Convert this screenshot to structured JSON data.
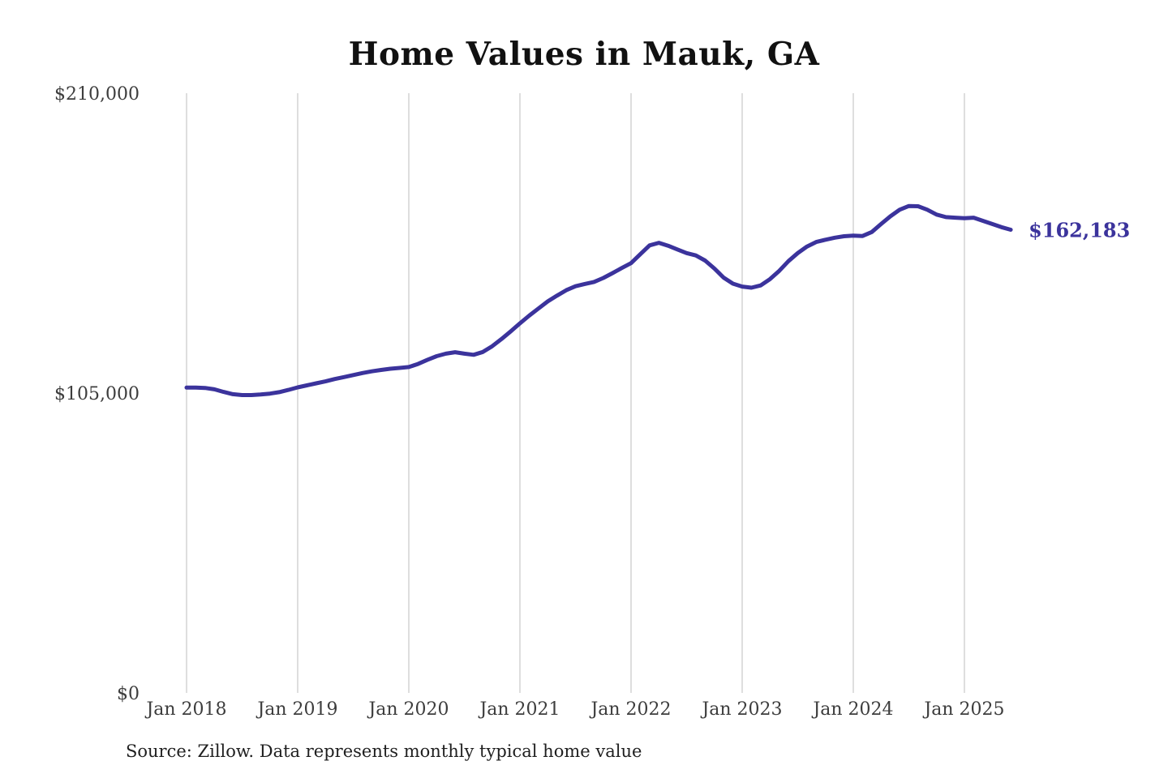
{
  "chart_data": {
    "type": "line",
    "title": "Home Values in Mauk, GA",
    "source_note": "Source: Zillow. Data represents monthly typical home value",
    "end_label": "$162,183",
    "line_color": "#3b339c",
    "grid": "vertical-only",
    "legend": "none",
    "ylim": [
      0,
      210000
    ],
    "y_ticks": [
      {
        "label": "$0",
        "value": 0
      },
      {
        "label": "$105,000",
        "value": 105000
      },
      {
        "label": "$210,000",
        "value": 210000
      }
    ],
    "x_ticks": [
      {
        "label": "Jan 2018",
        "month_index": 0
      },
      {
        "label": "Jan 2019",
        "month_index": 12
      },
      {
        "label": "Jan 2020",
        "month_index": 24
      },
      {
        "label": "Jan 2021",
        "month_index": 36
      },
      {
        "label": "Jan 2022",
        "month_index": 48
      },
      {
        "label": "Jan 2023",
        "month_index": 60
      },
      {
        "label": "Jan 2024",
        "month_index": 72
      },
      {
        "label": "Jan 2025",
        "month_index": 84
      }
    ],
    "x": [
      "2018-01",
      "2018-02",
      "2018-03",
      "2018-04",
      "2018-05",
      "2018-06",
      "2018-07",
      "2018-08",
      "2018-09",
      "2018-10",
      "2018-11",
      "2018-12",
      "2019-01",
      "2019-02",
      "2019-03",
      "2019-04",
      "2019-05",
      "2019-06",
      "2019-07",
      "2019-08",
      "2019-09",
      "2019-10",
      "2019-11",
      "2019-12",
      "2020-01",
      "2020-02",
      "2020-03",
      "2020-04",
      "2020-05",
      "2020-06",
      "2020-07",
      "2020-08",
      "2020-09",
      "2020-10",
      "2020-11",
      "2020-12",
      "2021-01",
      "2021-02",
      "2021-03",
      "2021-04",
      "2021-05",
      "2021-06",
      "2021-07",
      "2021-08",
      "2021-09",
      "2021-10",
      "2021-11",
      "2021-12",
      "2022-01",
      "2022-02",
      "2022-03",
      "2022-04",
      "2022-05",
      "2022-06",
      "2022-07",
      "2022-08",
      "2022-09",
      "2022-10",
      "2022-11",
      "2022-12",
      "2023-01",
      "2023-02",
      "2023-03",
      "2023-04",
      "2023-05",
      "2023-06",
      "2023-07",
      "2023-08",
      "2023-09",
      "2023-10",
      "2023-11",
      "2023-12",
      "2024-01",
      "2024-02",
      "2024-03",
      "2024-04",
      "2024-05",
      "2024-06",
      "2024-07",
      "2024-08",
      "2024-09",
      "2024-10",
      "2024-11",
      "2024-12",
      "2025-01",
      "2025-02",
      "2025-03",
      "2025-04",
      "2025-05",
      "2025-06"
    ],
    "values": [
      106900,
      106900,
      106800,
      106300,
      105400,
      104600,
      104300,
      104300,
      104500,
      104800,
      105300,
      106100,
      107000,
      107700,
      108400,
      109100,
      109900,
      110600,
      111300,
      112000,
      112600,
      113100,
      113500,
      113800,
      114100,
      115200,
      116600,
      117900,
      118800,
      119300,
      118800,
      118400,
      119400,
      121400,
      123900,
      126600,
      129400,
      132100,
      134600,
      137100,
      139100,
      141000,
      142400,
      143200,
      143900,
      145300,
      147000,
      148800,
      150500,
      153600,
      156700,
      157600,
      156600,
      155300,
      154000,
      153200,
      151400,
      148600,
      145400,
      143300,
      142300,
      141900,
      142700,
      144900,
      147800,
      151200,
      154000,
      156300,
      157900,
      158700,
      159400,
      159900,
      160100,
      160000,
      161400,
      164200,
      166900,
      169200,
      170500,
      170400,
      169200,
      167500,
      166600,
      166400,
      166200,
      166400,
      165300,
      164200,
      163100,
      162183
    ]
  }
}
